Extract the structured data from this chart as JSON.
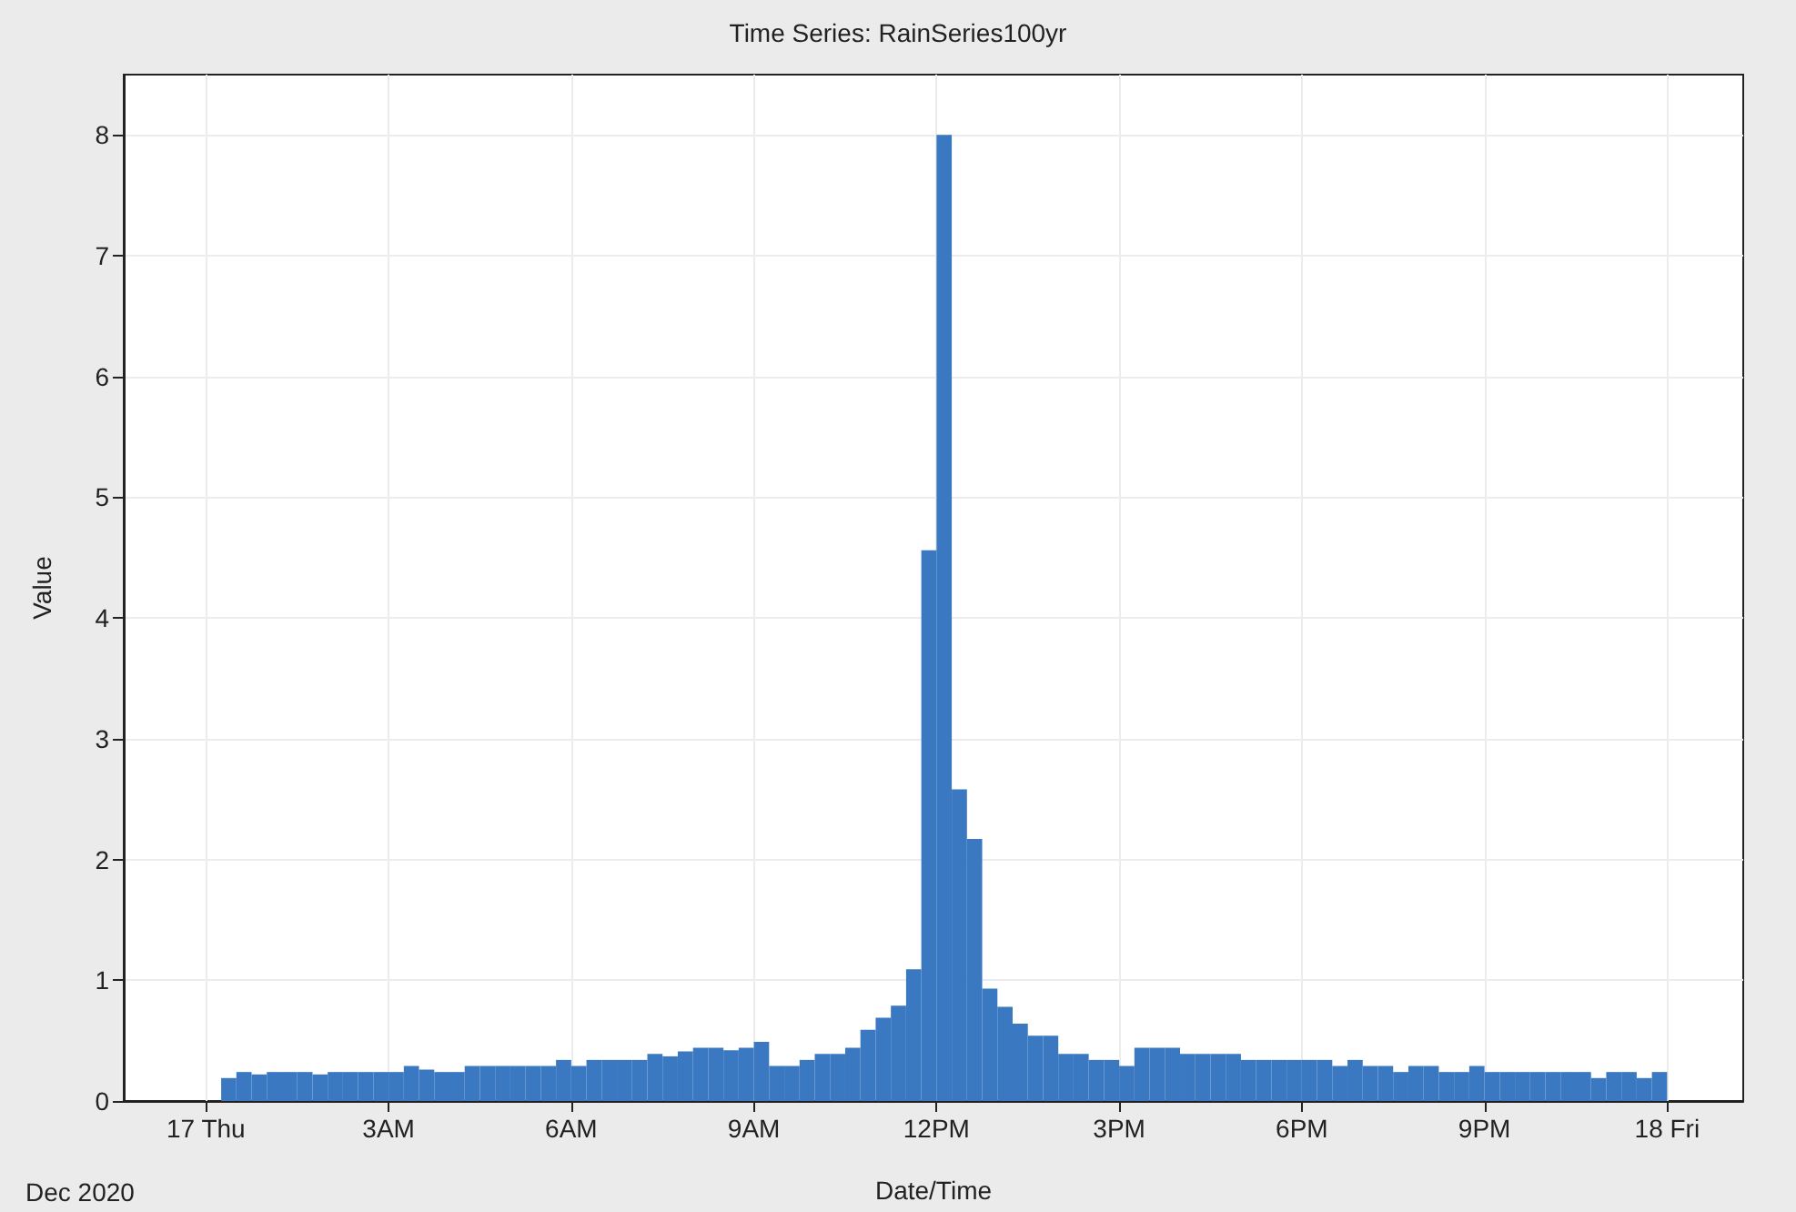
{
  "chart_data": {
    "type": "histogram",
    "title": "Time Series: RainSeries100yr",
    "xlabel": "Date/Time",
    "ylabel": "Value",
    "annotations": [
      "Dec 2020"
    ],
    "bins": [
      "2020-12-17T00:15",
      "2020-12-17T00:30",
      "2020-12-17T00:45",
      "2020-12-17T01:00",
      "2020-12-17T01:15",
      "2020-12-17T01:30",
      "2020-12-17T01:45",
      "2020-12-17T02:00",
      "2020-12-17T02:15",
      "2020-12-17T02:30",
      "2020-12-17T02:45",
      "2020-12-17T03:00",
      "2020-12-17T03:15",
      "2020-12-17T03:30",
      "2020-12-17T03:45",
      "2020-12-17T04:00",
      "2020-12-17T04:15",
      "2020-12-17T04:30",
      "2020-12-17T04:45",
      "2020-12-17T05:00",
      "2020-12-17T05:15",
      "2020-12-17T05:30",
      "2020-12-17T05:45",
      "2020-12-17T06:00",
      "2020-12-17T06:15",
      "2020-12-17T06:30",
      "2020-12-17T06:45",
      "2020-12-17T07:00",
      "2020-12-17T07:15",
      "2020-12-17T07:30",
      "2020-12-17T07:45",
      "2020-12-17T08:00",
      "2020-12-17T08:15",
      "2020-12-17T08:30",
      "2020-12-17T08:45",
      "2020-12-17T09:00",
      "2020-12-17T09:15",
      "2020-12-17T09:30",
      "2020-12-17T09:45",
      "2020-12-17T10:00",
      "2020-12-17T10:15",
      "2020-12-17T10:30",
      "2020-12-17T10:45",
      "2020-12-17T11:00",
      "2020-12-17T11:15",
      "2020-12-17T11:30",
      "2020-12-17T11:45",
      "2020-12-17T12:00",
      "2020-12-17T12:15",
      "2020-12-17T12:30",
      "2020-12-17T12:45",
      "2020-12-17T13:00",
      "2020-12-17T13:15",
      "2020-12-17T13:30",
      "2020-12-17T13:45",
      "2020-12-17T14:00",
      "2020-12-17T14:15",
      "2020-12-17T14:30",
      "2020-12-17T14:45",
      "2020-12-17T15:00",
      "2020-12-17T15:15",
      "2020-12-17T15:30",
      "2020-12-17T15:45",
      "2020-12-17T16:00",
      "2020-12-17T16:15",
      "2020-12-17T16:30",
      "2020-12-17T16:45",
      "2020-12-17T17:00",
      "2020-12-17T17:15",
      "2020-12-17T17:30",
      "2020-12-17T17:45",
      "2020-12-17T18:00",
      "2020-12-17T18:15",
      "2020-12-17T18:30",
      "2020-12-17T18:45",
      "2020-12-17T19:00",
      "2020-12-17T19:15",
      "2020-12-17T19:30",
      "2020-12-17T19:45",
      "2020-12-17T20:00",
      "2020-12-17T20:15",
      "2020-12-17T20:30",
      "2020-12-17T20:45",
      "2020-12-17T21:00",
      "2020-12-17T21:15",
      "2020-12-17T21:30",
      "2020-12-17T21:45",
      "2020-12-17T22:00",
      "2020-12-17T22:15",
      "2020-12-17T22:30",
      "2020-12-17T22:45",
      "2020-12-17T23:00",
      "2020-12-17T23:15",
      "2020-12-17T23:30",
      "2020-12-17T23:45",
      "2020-12-18T00:00"
    ],
    "values": [
      0.19,
      0.24,
      0.22,
      0.24,
      0.24,
      0.24,
      0.22,
      0.24,
      0.24,
      0.24,
      0.24,
      0.24,
      0.29,
      0.26,
      0.24,
      0.24,
      0.29,
      0.29,
      0.29,
      0.29,
      0.29,
      0.29,
      0.34,
      0.29,
      0.34,
      0.34,
      0.34,
      0.34,
      0.39,
      0.37,
      0.41,
      0.44,
      0.44,
      0.42,
      0.44,
      0.49,
      0.29,
      0.29,
      0.34,
      0.39,
      0.39,
      0.44,
      0.59,
      0.69,
      0.79,
      1.09,
      4.56,
      8.0,
      2.58,
      2.17,
      0.93,
      0.78,
      0.64,
      0.54,
      0.54,
      0.39,
      0.39,
      0.34,
      0.34,
      0.29,
      0.44,
      0.44,
      0.44,
      0.39,
      0.39,
      0.39,
      0.39,
      0.34,
      0.34,
      0.34,
      0.34,
      0.34,
      0.34,
      0.29,
      0.34,
      0.29,
      0.29,
      0.24,
      0.29,
      0.29,
      0.24,
      0.24,
      0.29,
      0.24,
      0.24,
      0.24,
      0.24,
      0.24,
      0.24,
      0.24,
      0.19,
      0.24,
      0.24,
      0.19,
      0.24
    ],
    "color": "#3a78c2",
    "xlim": [
      "2020-12-16T22:39",
      "2020-12-18T01:15"
    ],
    "xticks": [
      {
        "value": "2020-12-17T00:00",
        "label": "17 Thu"
      },
      {
        "value": "2020-12-17T03:00",
        "label": "3AM"
      },
      {
        "value": "2020-12-17T06:00",
        "label": "6AM"
      },
      {
        "value": "2020-12-17T09:00",
        "label": "9AM"
      },
      {
        "value": "2020-12-17T12:00",
        "label": "12PM"
      },
      {
        "value": "2020-12-17T15:00",
        "label": "3PM"
      },
      {
        "value": "2020-12-17T18:00",
        "label": "6PM"
      },
      {
        "value": "2020-12-17T21:00",
        "label": "9PM"
      },
      {
        "value": "2020-12-18T00:00",
        "label": "18 Fri"
      }
    ],
    "ylim": [
      0,
      8.5
    ],
    "yticks": [
      0,
      1,
      2,
      3,
      4,
      5,
      6,
      7,
      8
    ],
    "grid": true
  }
}
